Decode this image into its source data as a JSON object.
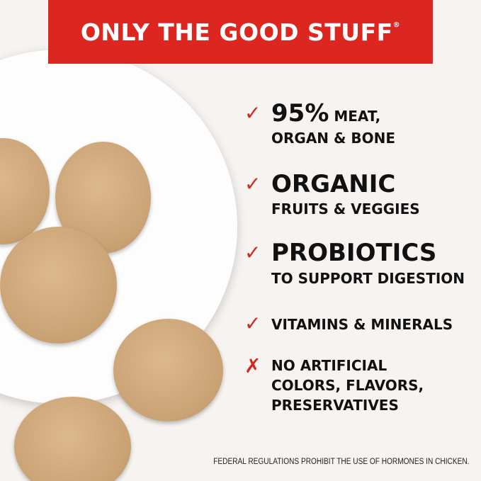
{
  "banner": {
    "title": "ONLY THE GOOD STUFF",
    "registered": "®"
  },
  "features": [
    {
      "icon": "checkmark-icon",
      "headline": "95%",
      "tail": " MEAT,",
      "line2": "ORGAN & BONE"
    },
    {
      "icon": "checkmark-icon",
      "headline": "ORGANIC",
      "line2": "FRUITS & VEGGIES"
    },
    {
      "icon": "checkmark-icon",
      "headline": "PROBIOTICS",
      "line2": "TO SUPPORT DIGESTION"
    },
    {
      "icon": "checkmark-icon",
      "line1": "VITAMINS & MINERALS"
    },
    {
      "icon": "x-mark-icon",
      "line1": "NO ARTIFICIAL",
      "line2": "COLORS, FLAVORS,",
      "line3": "PRESERVATIVES"
    }
  ],
  "footnote": "FEDERAL REGULATIONS PROHIBIT THE USE OF HORMONES IN CHICKEN.",
  "colors": {
    "brand_red": "#dc2620",
    "background": "#f6f3f0"
  },
  "marks": {
    "check": "✓",
    "cross": "✗"
  }
}
